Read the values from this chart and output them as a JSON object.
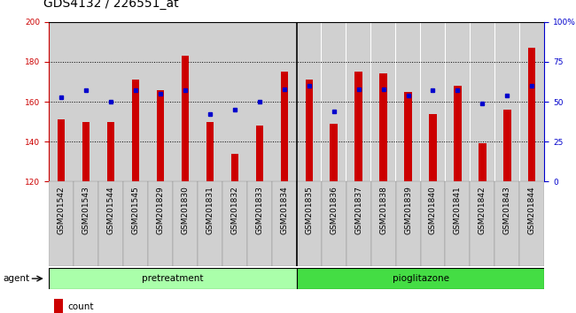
{
  "title": "GDS4132 / 226551_at",
  "categories": [
    "GSM201542",
    "GSM201543",
    "GSM201544",
    "GSM201545",
    "GSM201829",
    "GSM201830",
    "GSM201831",
    "GSM201832",
    "GSM201833",
    "GSM201834",
    "GSM201835",
    "GSM201836",
    "GSM201837",
    "GSM201838",
    "GSM201839",
    "GSM201840",
    "GSM201841",
    "GSM201842",
    "GSM201843",
    "GSM201844"
  ],
  "counts": [
    151,
    150,
    150,
    171,
    166,
    183,
    150,
    134,
    148,
    175,
    171,
    149,
    175,
    174,
    165,
    154,
    168,
    139,
    156,
    187
  ],
  "percentiles": [
    53,
    57,
    50,
    57,
    55,
    57,
    42,
    45,
    50,
    58,
    60,
    44,
    58,
    58,
    54,
    57,
    57,
    49,
    54,
    60
  ],
  "pretreatment_count": 10,
  "pioglitazone_count": 10,
  "ylim_left": [
    120,
    200
  ],
  "ylim_right": [
    0,
    100
  ],
  "yticks_left": [
    120,
    140,
    160,
    180,
    200
  ],
  "yticks_right": [
    0,
    25,
    50,
    75,
    100
  ],
  "bar_color": "#cc0000",
  "dot_color": "#0000cc",
  "pretreatment_color": "#aaffaa",
  "pioglitazone_color": "#44dd44",
  "background_bar_color": "#d0d0d0",
  "title_fontsize": 10,
  "tick_fontsize": 6.5,
  "label_fontsize": 7.5
}
